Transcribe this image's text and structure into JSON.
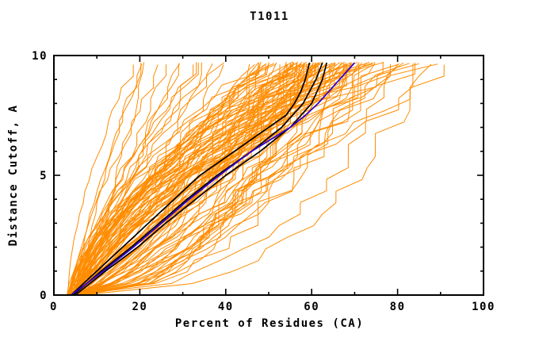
{
  "chart_data": {
    "type": "line",
    "title": "T1011",
    "xlabel": "Percent of Residues (CA)",
    "ylabel": "Distance Cutoff, A",
    "xlim": [
      0,
      100
    ],
    "ylim": [
      0,
      10
    ],
    "grid": false,
    "legend": "none",
    "x_major_ticks": [
      0,
      20,
      40,
      60,
      80,
      100
    ],
    "x_minor_ticks": [
      10,
      30,
      50,
      70,
      90
    ],
    "y_major_ticks": [
      0,
      5,
      10
    ],
    "y_minor_ticks": [
      1,
      2,
      3,
      4,
      6,
      7,
      8,
      9
    ],
    "colors": {
      "axis": "#000000",
      "ensemble": "#ff8c00",
      "highlight": "#000000",
      "reference": "#3300cc",
      "background": "#ffffff"
    },
    "highlight_series": [
      {
        "name": "model-black-1",
        "color": "#000000",
        "width": 1.7,
        "points": [
          [
            4,
            0
          ],
          [
            7,
            0.5
          ],
          [
            10,
            1
          ],
          [
            13,
            1.5
          ],
          [
            16,
            2
          ],
          [
            19,
            2.5
          ],
          [
            22,
            3
          ],
          [
            25,
            3.5
          ],
          [
            28,
            4
          ],
          [
            31,
            4.5
          ],
          [
            34,
            5
          ],
          [
            38,
            5.5
          ],
          [
            42,
            6
          ],
          [
            46,
            6.5
          ],
          [
            50,
            7
          ],
          [
            54,
            7.5
          ],
          [
            56,
            8
          ],
          [
            57.5,
            8.5
          ],
          [
            58.5,
            9
          ],
          [
            59.5,
            9.7
          ]
        ]
      },
      {
        "name": "model-black-2",
        "color": "#000000",
        "width": 1.7,
        "points": [
          [
            4.5,
            0
          ],
          [
            11,
            1
          ],
          [
            18,
            2
          ],
          [
            24.5,
            3
          ],
          [
            31,
            4
          ],
          [
            38,
            5
          ],
          [
            46,
            6
          ],
          [
            53,
            7
          ],
          [
            58,
            8
          ],
          [
            61,
            9
          ],
          [
            62.5,
            9.7
          ]
        ]
      },
      {
        "name": "model-black-3",
        "color": "#000000",
        "width": 1.7,
        "points": [
          [
            5,
            0
          ],
          [
            12,
            1
          ],
          [
            19.5,
            2
          ],
          [
            26,
            3
          ],
          [
            33,
            4
          ],
          [
            40,
            5
          ],
          [
            48,
            6
          ],
          [
            55,
            7
          ],
          [
            60,
            8
          ],
          [
            62.5,
            9
          ],
          [
            63.5,
            9.7
          ]
        ]
      }
    ],
    "reference_series": {
      "name": "model-blue",
      "color": "#3300cc",
      "width": 1.8,
      "points": [
        [
          4,
          0
        ],
        [
          11.5,
          1
        ],
        [
          18.5,
          2
        ],
        [
          25,
          3
        ],
        [
          31.5,
          4
        ],
        [
          38.5,
          5
        ],
        [
          46,
          6
        ],
        [
          55,
          7
        ],
        [
          58.5,
          7.5
        ],
        [
          61.5,
          8
        ],
        [
          64,
          8.5
        ],
        [
          66.5,
          9
        ],
        [
          70,
          9.7
        ]
      ]
    },
    "ensemble": {
      "name": "server-model-curves",
      "color": "#ff8c00",
      "width": 1,
      "count": 115,
      "seed": 1011,
      "y_top": 9.7,
      "start_x_range": [
        3,
        7.5
      ],
      "end_x_groups": [
        {
          "weight": 0.15,
          "range": [
            13,
            40
          ]
        },
        {
          "weight": 0.68,
          "range": [
            48,
            70
          ]
        },
        {
          "weight": 0.17,
          "range": [
            70,
            90
          ]
        }
      ],
      "shape_exponent_range": [
        0.65,
        1.75
      ],
      "steep_exponent_range": [
        0.8,
        1.7
      ],
      "shelf_fraction": 0.22,
      "shelf_exponent_range": [
        0.32,
        0.6
      ],
      "envelope": {
        "y": [
          0,
          1,
          2,
          3,
          5,
          7,
          9.7
        ],
        "x_min": [
          3,
          5,
          6,
          7,
          10,
          12,
          13
        ],
        "x_max": [
          8,
          37,
          42,
          46,
          55,
          75,
          90
        ]
      }
    }
  }
}
